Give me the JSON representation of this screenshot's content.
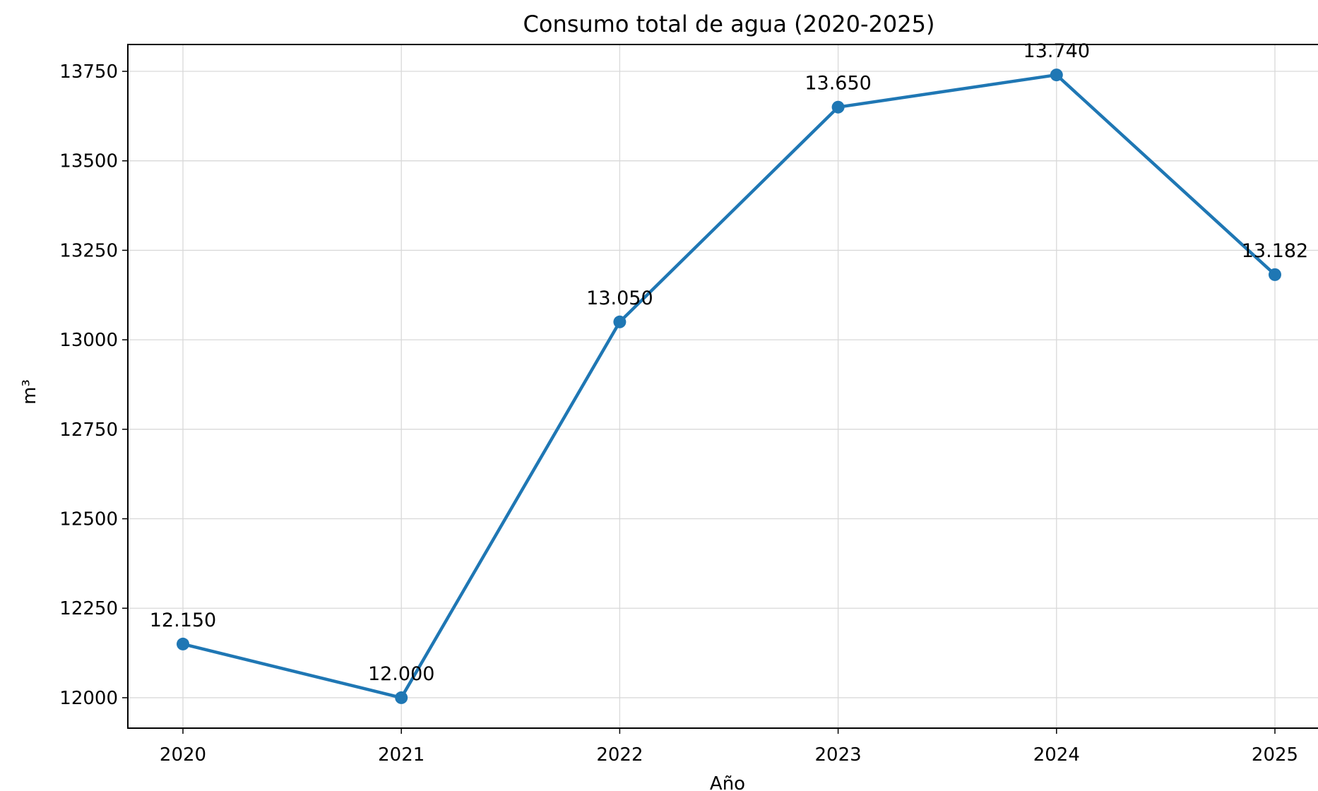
{
  "chart_data": {
    "type": "line",
    "title": "Consumo total de agua (2020-2025)",
    "xlabel": "Año",
    "ylabel": "m³",
    "categories": [
      "2020",
      "2021",
      "2022",
      "2023",
      "2024",
      "2025"
    ],
    "series": [
      {
        "values": [
          12150,
          12000,
          13050,
          13650,
          13740,
          13182
        ],
        "data_labels": [
          "12.150",
          "12.000",
          "13.050",
          "13.650",
          "13.740",
          "13.182"
        ],
        "color": "#1f77b4"
      }
    ],
    "y_ticks": [
      "12000",
      "12250",
      "12500",
      "12750",
      "13000",
      "13250",
      "13500",
      "13750"
    ],
    "y_tick_values": [
      12000,
      12250,
      12500,
      12750,
      13000,
      13250,
      13500,
      13750
    ],
    "ylim": [
      11915,
      13825
    ],
    "grid": true,
    "legend": "none"
  }
}
